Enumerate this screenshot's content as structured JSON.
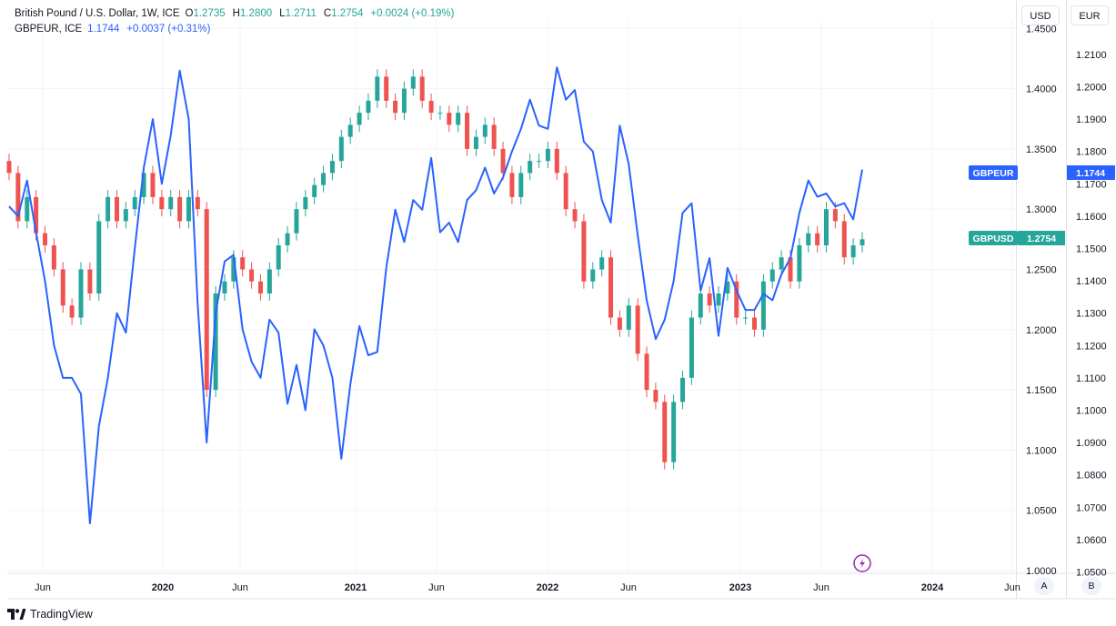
{
  "header": {
    "line1": {
      "symbol": "British Pound / U.S. Dollar, 1W, ICE",
      "o_label": "O",
      "o_val": "1.2735",
      "h_label": "H",
      "h_val": "1.2800",
      "l_label": "L",
      "l_val": "1.2711",
      "c_label": "C",
      "c_val": "1.2754",
      "change": "+0.0024 (+0.19%)"
    },
    "line2": {
      "symbol": "GBPEUR, ICE",
      "value": "1.1744",
      "change": "+0.0037 (+0.31%)"
    }
  },
  "buttons": {
    "usd": "USD",
    "eur": "EUR",
    "auto": "A",
    "log": "B"
  },
  "footer": {
    "brand": "TradingView"
  },
  "colors": {
    "up": "#26a69a",
    "down": "#ef5350",
    "line": "#2962ff",
    "grid": "#f0f3fa"
  },
  "chart_data": {
    "type": "line",
    "x_tick_labels": [
      "Jun",
      "2020",
      "Jun",
      "2021",
      "Jun",
      "2022",
      "Jun",
      "2023",
      "Jun",
      "2024",
      "Jun"
    ],
    "y_left_label": "USD",
    "y_left_ticks": [
      "1.4500",
      "1.4000",
      "1.3500",
      "1.3000",
      "1.2500",
      "1.2000",
      "1.1500",
      "1.1000",
      "1.0500",
      "1.0000"
    ],
    "y_right_label": "EUR",
    "y_right_ticks": [
      "1.2100",
      "1.2000",
      "1.1900",
      "1.1800",
      "1.1700",
      "1.1600",
      "1.1500",
      "1.1400",
      "1.1300",
      "1.1200",
      "1.1100",
      "1.1000",
      "1.0900",
      "1.0800",
      "1.0700",
      "1.0600",
      "1.0500"
    ],
    "series": [
      {
        "name": "GBPUSD",
        "type": "candlestick",
        "last_value": "1.2754",
        "values": [
          1.33,
          1.29,
          1.31,
          1.28,
          1.27,
          1.25,
          1.22,
          1.21,
          1.25,
          1.23,
          1.29,
          1.31,
          1.29,
          1.3,
          1.31,
          1.33,
          1.31,
          1.3,
          1.31,
          1.29,
          1.31,
          1.3,
          1.15,
          1.23,
          1.24,
          1.26,
          1.25,
          1.24,
          1.23,
          1.25,
          1.27,
          1.28,
          1.3,
          1.31,
          1.32,
          1.33,
          1.34,
          1.36,
          1.37,
          1.38,
          1.39,
          1.41,
          1.39,
          1.38,
          1.4,
          1.41,
          1.39,
          1.38,
          1.38,
          1.37,
          1.38,
          1.35,
          1.36,
          1.37,
          1.35,
          1.33,
          1.31,
          1.33,
          1.34,
          1.34,
          1.35,
          1.33,
          1.3,
          1.29,
          1.24,
          1.25,
          1.26,
          1.21,
          1.2,
          1.22,
          1.18,
          1.15,
          1.14,
          1.09,
          1.14,
          1.16,
          1.21,
          1.23,
          1.22,
          1.23,
          1.24,
          1.21,
          1.21,
          1.2,
          1.24,
          1.25,
          1.26,
          1.24,
          1.27,
          1.28,
          1.27,
          1.3,
          1.29,
          1.26,
          1.27,
          1.275
        ],
        "color": "#26a69a"
      },
      {
        "name": "GBPEUR",
        "type": "line",
        "last_value": "1.1744",
        "values": [
          1.163,
          1.16,
          1.171,
          1.155,
          1.14,
          1.12,
          1.11,
          1.11,
          1.105,
          1.065,
          1.095,
          1.11,
          1.13,
          1.124,
          1.15,
          1.175,
          1.19,
          1.17,
          1.185,
          1.205,
          1.19,
          1.133,
          1.09,
          1.13,
          1.146,
          1.148,
          1.125,
          1.115,
          1.11,
          1.128,
          1.124,
          1.102,
          1.114,
          1.1,
          1.125,
          1.12,
          1.11,
          1.085,
          1.108,
          1.126,
          1.117,
          1.118,
          1.144,
          1.162,
          1.152,
          1.165,
          1.162,
          1.178,
          1.155,
          1.158,
          1.152,
          1.165,
          1.168,
          1.175,
          1.167,
          1.172,
          1.18,
          1.187,
          1.196,
          1.188,
          1.187,
          1.206,
          1.196,
          1.199,
          1.183,
          1.18,
          1.165,
          1.158,
          1.188,
          1.176,
          1.154,
          1.134,
          1.122,
          1.128,
          1.14,
          1.161,
          1.164,
          1.137,
          1.147,
          1.123,
          1.144,
          1.137,
          1.131,
          1.131,
          1.136,
          1.134,
          1.142,
          1.147,
          1.161,
          1.171,
          1.166,
          1.167,
          1.163,
          1.164,
          1.159,
          1.1744
        ]
      }
    ],
    "legend": [
      "GBPEUR",
      "GBPUSD"
    ],
    "grid": true
  }
}
